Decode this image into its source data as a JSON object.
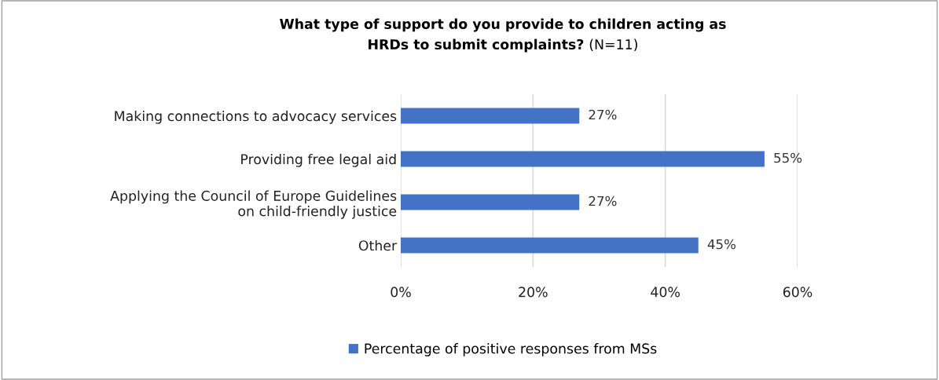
{
  "chart_data": {
    "type": "bar",
    "orientation": "horizontal",
    "title": "What type of support do you provide to children acting as HRDs to submit complaints?",
    "subtitle": "(N=11)",
    "categories": [
      "Making connections to advocacy services",
      "Providing free legal aid",
      "Applying the Council of Europe Guidelines\non child-friendly justice",
      "Other"
    ],
    "series": [
      {
        "name": "Percentage of positive responses from MSs",
        "color": "#4472c4",
        "values": [
          27,
          55,
          27,
          45
        ],
        "value_labels": [
          "27%",
          "55%",
          "27%",
          "45%"
        ]
      }
    ],
    "xlim": [
      0,
      60
    ],
    "xticks": [
      {
        "value": 0,
        "label": "0%"
      },
      {
        "value": 20,
        "label": "20%"
      },
      {
        "value": 40,
        "label": "40%"
      },
      {
        "value": 60,
        "label": "60%"
      }
    ],
    "grid": "x",
    "legend": "bottom"
  }
}
